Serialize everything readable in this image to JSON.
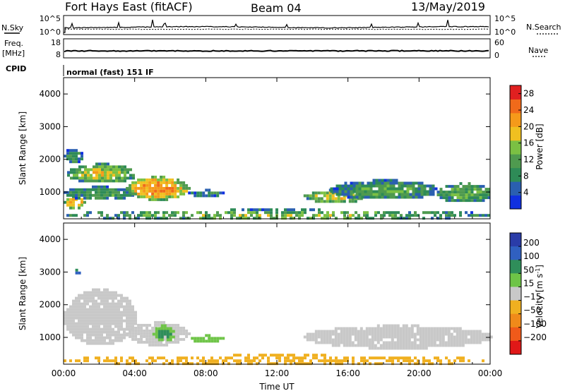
{
  "header": {
    "station": "Fort Hays East (fitACF)",
    "beam": "Beam 04",
    "date": "13/May/2019"
  },
  "left_labels": {
    "nsky": "N.Sky",
    "freq_line1": "Freq.",
    "freq_line2": "[MHz]",
    "cpid": "CPID"
  },
  "right_labels": {
    "nsearch": "N.Search",
    "nave": "Nave"
  },
  "cpid_text": "normal (fast) 151 IF",
  "noise_panel": {
    "left_ticks": [
      "10^5",
      "10^0"
    ],
    "right_ticks": [
      "10^5",
      "10^0"
    ]
  },
  "freq_panel": {
    "left_ticks": [
      "18",
      "8"
    ],
    "right_ticks": [
      "60",
      "0"
    ]
  },
  "colors": {
    "power": [
      "#1030e0",
      "#2a5fb0",
      "#2e8b57",
      "#4f9a4f",
      "#7bc043",
      "#f0c020",
      "#f59a1a",
      "#f06a1a",
      "#e02020"
    ],
    "velocity": [
      "#2a3ca8",
      "#3060c0",
      "#2f8e5a",
      "#6ec447",
      "#c8c8c8",
      "#f0b020",
      "#f08a1a",
      "#f05a1a",
      "#e01818"
    ]
  },
  "chart_data": [
    {
      "type": "heatmap",
      "name": "power",
      "xlabel": "",
      "ylabel": "Slant Range [km]",
      "x_tick_labels": [
        "00:00",
        "04:00",
        "08:00",
        "12:00",
        "16:00",
        "20:00",
        "00:00"
      ],
      "xlim_hours": [
        0,
        24
      ],
      "y_ticks": [
        "1000",
        "2000",
        "3000",
        "4000"
      ],
      "ylim": [
        180,
        4500
      ],
      "colorbar": {
        "label": "Power [dB]",
        "ticks": [
          "4",
          "8",
          "12",
          "16",
          "20",
          "24",
          "28"
        ],
        "range": [
          0,
          30
        ]
      },
      "regions": [
        {
          "t0": 0.0,
          "t1": 1.2,
          "r0": 500,
          "r1": 900,
          "value": 22
        },
        {
          "t0": 0.0,
          "t1": 4.0,
          "r0": 800,
          "r1": 1200,
          "value": 12
        },
        {
          "t0": 0.2,
          "t1": 4.0,
          "r0": 1300,
          "r1": 1900,
          "value": 18
        },
        {
          "t0": 0.0,
          "t1": 1.0,
          "r0": 1900,
          "r1": 2400,
          "value": 10
        },
        {
          "t0": 3.5,
          "t1": 7.0,
          "r0": 800,
          "r1": 1500,
          "value": 24
        },
        {
          "t0": 7.0,
          "t1": 9.0,
          "r0": 900,
          "r1": 1100,
          "value": 8
        },
        {
          "t0": 13.5,
          "t1": 17.0,
          "r0": 700,
          "r1": 1100,
          "value": 18
        },
        {
          "t0": 15.0,
          "t1": 21.0,
          "r0": 800,
          "r1": 1400,
          "value": 12
        },
        {
          "t0": 21.0,
          "t1": 24.0,
          "r0": 700,
          "r1": 1300,
          "value": 14
        },
        {
          "t0": 0.0,
          "t1": 24.0,
          "r0": 180,
          "r1": 500,
          "value": 14
        }
      ]
    },
    {
      "type": "heatmap",
      "name": "velocity",
      "xlabel": "Time UT",
      "ylabel": "Slant Range [km]",
      "x_tick_labels": [
        "00:00",
        "04:00",
        "08:00",
        "12:00",
        "16:00",
        "20:00",
        "00:00"
      ],
      "xlim_hours": [
        0,
        24
      ],
      "y_ticks": [
        "1000",
        "2000",
        "3000",
        "4000"
      ],
      "ylim": [
        180,
        4500
      ],
      "colorbar": {
        "label": "Velocity [m s^-1]",
        "ticks": [
          "200",
          "100",
          "50",
          "15",
          "-15",
          "-50",
          "-100",
          "-200"
        ],
        "range": [
          -250,
          250
        ]
      },
      "regions": [
        {
          "t0": 0.0,
          "t1": 4.0,
          "r0": 800,
          "r1": 2500,
          "value": 0
        },
        {
          "t0": 3.5,
          "t1": 7.0,
          "r0": 800,
          "r1": 1500,
          "value": 0
        },
        {
          "t0": 5.0,
          "t1": 6.2,
          "r0": 900,
          "r1": 1400,
          "value": 60
        },
        {
          "t0": 0.5,
          "t1": 0.9,
          "r0": 2950,
          "r1": 3100,
          "value": 180
        },
        {
          "t0": 7.0,
          "t1": 9.0,
          "r0": 900,
          "r1": 1100,
          "value": 40
        },
        {
          "t0": 13.5,
          "t1": 24.0,
          "r0": 700,
          "r1": 1400,
          "value": 0
        },
        {
          "t0": 0.0,
          "t1": 24.0,
          "r0": 180,
          "r1": 500,
          "value": -40
        }
      ]
    }
  ]
}
